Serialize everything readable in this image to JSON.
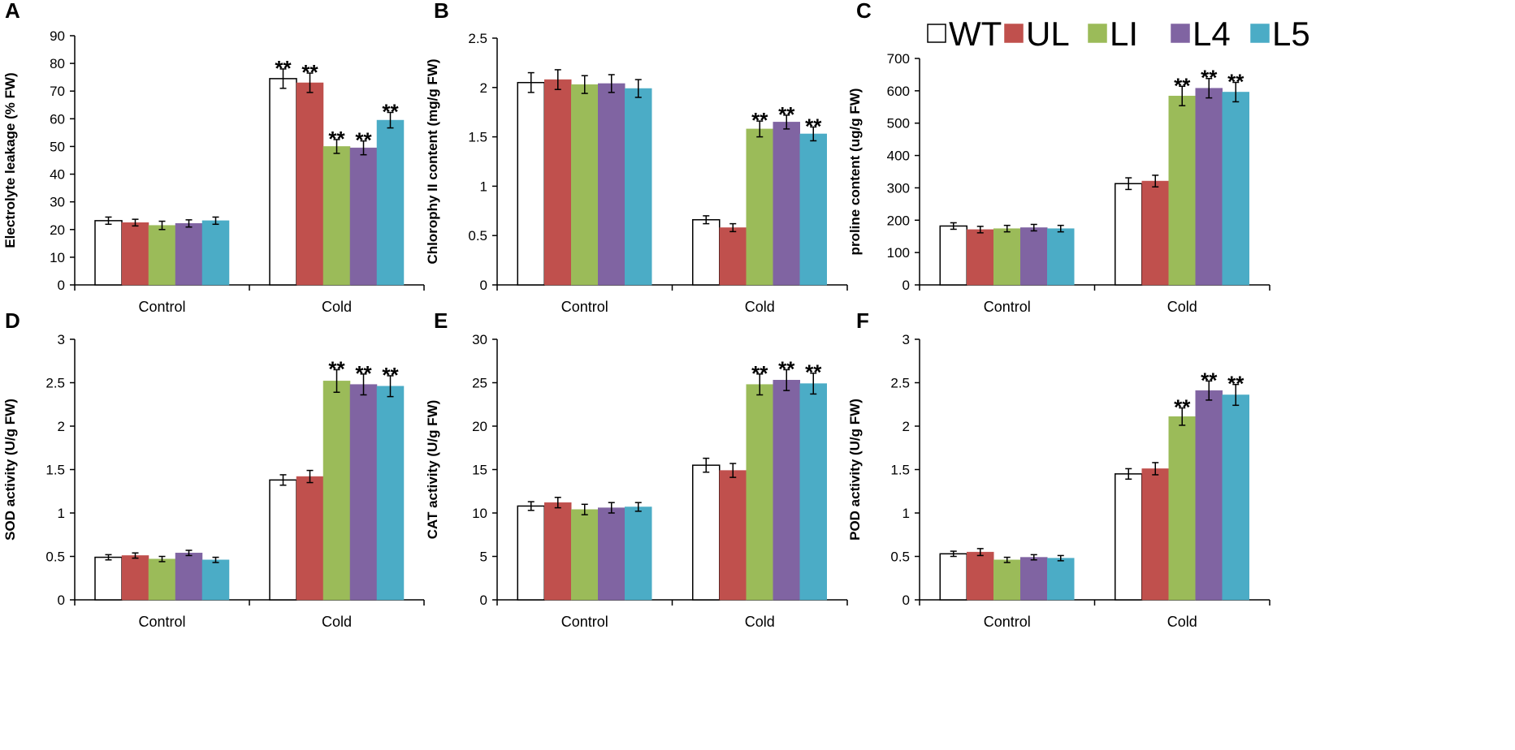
{
  "legend": [
    {
      "label": "WT",
      "color": "#ffffff"
    },
    {
      "label": "UL",
      "color": "#c0504d"
    },
    {
      "label": "LI",
      "color": "#9bbb59"
    },
    {
      "label": "L4",
      "color": "#8064a2"
    },
    {
      "label": "L5",
      "color": "#4bacc6"
    }
  ],
  "chart_data": [
    {
      "panel": "A",
      "type": "bar",
      "ylabel": "Electrolyte leakage (% FW)",
      "ylim": [
        0,
        90
      ],
      "yticks": [
        0,
        10,
        20,
        30,
        40,
        50,
        60,
        70,
        80,
        90
      ],
      "ytick_labels": [
        "0",
        "10",
        "20",
        "30",
        "40",
        "50",
        "60",
        "70",
        "80",
        "90"
      ],
      "categories": [
        "Control",
        "Cold"
      ],
      "series": [
        {
          "name": "WT",
          "values": [
            23.2,
            74.5
          ],
          "errors": [
            1.3,
            3.5
          ],
          "sig": [
            "",
            "**"
          ]
        },
        {
          "name": "UL",
          "values": [
            22.5,
            73.0
          ],
          "errors": [
            1.2,
            3.5
          ],
          "sig": [
            "",
            "**"
          ]
        },
        {
          "name": "LI",
          "values": [
            21.5,
            50.0
          ],
          "errors": [
            1.5,
            2.5
          ],
          "sig": [
            "",
            "**"
          ]
        },
        {
          "name": "L4",
          "values": [
            22.2,
            49.5
          ],
          "errors": [
            1.3,
            2.5
          ],
          "sig": [
            "",
            "**"
          ]
        },
        {
          "name": "L5",
          "values": [
            23.2,
            59.5
          ],
          "errors": [
            1.3,
            2.8
          ],
          "sig": [
            "",
            "**"
          ]
        }
      ]
    },
    {
      "panel": "B",
      "type": "bar",
      "ylabel": "Chlorophy II content  (mg/g FW)",
      "ylim": [
        0,
        2.5
      ],
      "yticks": [
        0,
        0.5,
        1,
        1.5,
        2,
        2.5
      ],
      "ytick_labels": [
        "0",
        "0.5",
        "1",
        "1.5",
        "2",
        "2.5"
      ],
      "categories": [
        "Control",
        "Cold"
      ],
      "series": [
        {
          "name": "WT",
          "values": [
            2.05,
            0.66
          ],
          "errors": [
            0.1,
            0.04
          ],
          "sig": [
            "",
            ""
          ]
        },
        {
          "name": "UL",
          "values": [
            2.08,
            0.58
          ],
          "errors": [
            0.1,
            0.04
          ],
          "sig": [
            "",
            ""
          ]
        },
        {
          "name": "LI",
          "values": [
            2.03,
            1.58
          ],
          "errors": [
            0.09,
            0.08
          ],
          "sig": [
            "",
            "**"
          ]
        },
        {
          "name": "L4",
          "values": [
            2.04,
            1.65
          ],
          "errors": [
            0.09,
            0.07
          ],
          "sig": [
            "",
            "**"
          ]
        },
        {
          "name": "L5",
          "values": [
            1.99,
            1.53
          ],
          "errors": [
            0.09,
            0.07
          ],
          "sig": [
            "",
            "**"
          ]
        }
      ]
    },
    {
      "panel": "C",
      "type": "bar",
      "ylabel": "proline content  (ug/g FW)",
      "ylim": [
        0,
        700
      ],
      "yticks": [
        0,
        100,
        200,
        300,
        400,
        500,
        600,
        700
      ],
      "ytick_labels": [
        "0",
        "100",
        "200",
        "300",
        "400",
        "500",
        "600",
        "700"
      ],
      "categories": [
        "Control",
        "Cold"
      ],
      "series": [
        {
          "name": "WT",
          "values": [
            182,
            313
          ],
          "errors": [
            10,
            18
          ],
          "sig": [
            "",
            ""
          ]
        },
        {
          "name": "UL",
          "values": [
            171,
            321
          ],
          "errors": [
            10,
            18
          ],
          "sig": [
            "",
            ""
          ]
        },
        {
          "name": "LI",
          "values": [
            174,
            584
          ],
          "errors": [
            10,
            30
          ],
          "sig": [
            "",
            "**"
          ]
        },
        {
          "name": "L4",
          "values": [
            177,
            608
          ],
          "errors": [
            10,
            30
          ],
          "sig": [
            "",
            "**"
          ]
        },
        {
          "name": "L5",
          "values": [
            174,
            596
          ],
          "errors": [
            10,
            30
          ],
          "sig": [
            "",
            "**"
          ]
        }
      ]
    },
    {
      "panel": "D",
      "type": "bar",
      "ylabel": "SOD activity  (U/g FW)",
      "ylim": [
        0,
        3
      ],
      "yticks": [
        0,
        0.5,
        1,
        1.5,
        2,
        2.5,
        3
      ],
      "ytick_labels": [
        "0",
        "0.5",
        "1",
        "1.5",
        "2",
        "2.5",
        "3"
      ],
      "categories": [
        "Control",
        "Cold"
      ],
      "series": [
        {
          "name": "WT",
          "values": [
            0.49,
            1.38
          ],
          "errors": [
            0.03,
            0.06
          ],
          "sig": [
            "",
            ""
          ]
        },
        {
          "name": "UL",
          "values": [
            0.51,
            1.42
          ],
          "errors": [
            0.03,
            0.07
          ],
          "sig": [
            "",
            ""
          ]
        },
        {
          "name": "LI",
          "values": [
            0.47,
            2.52
          ],
          "errors": [
            0.03,
            0.13
          ],
          "sig": [
            "",
            "**"
          ]
        },
        {
          "name": "L4",
          "values": [
            0.54,
            2.48
          ],
          "errors": [
            0.03,
            0.12
          ],
          "sig": [
            "",
            "**"
          ]
        },
        {
          "name": "L5",
          "values": [
            0.46,
            2.46
          ],
          "errors": [
            0.03,
            0.12
          ],
          "sig": [
            "",
            "**"
          ]
        }
      ]
    },
    {
      "panel": "E",
      "type": "bar",
      "ylabel": "CAT activity  (U/g FW)",
      "ylim": [
        0,
        30
      ],
      "yticks": [
        0,
        5,
        10,
        15,
        20,
        25,
        30
      ],
      "ytick_labels": [
        "0",
        "5",
        "10",
        "15",
        "20",
        "25",
        "30"
      ],
      "categories": [
        "Control",
        "Cold"
      ],
      "series": [
        {
          "name": "WT",
          "values": [
            10.8,
            15.5
          ],
          "errors": [
            0.5,
            0.8
          ],
          "sig": [
            "",
            ""
          ]
        },
        {
          "name": "UL",
          "values": [
            11.2,
            14.9
          ],
          "errors": [
            0.6,
            0.8
          ],
          "sig": [
            "",
            ""
          ]
        },
        {
          "name": "LI",
          "values": [
            10.4,
            24.8
          ],
          "errors": [
            0.6,
            1.2
          ],
          "sig": [
            "",
            "**"
          ]
        },
        {
          "name": "L4",
          "values": [
            10.6,
            25.3
          ],
          "errors": [
            0.6,
            1.2
          ],
          "sig": [
            "",
            "**"
          ]
        },
        {
          "name": "L5",
          "values": [
            10.7,
            24.9
          ],
          "errors": [
            0.5,
            1.2
          ],
          "sig": [
            "",
            "**"
          ]
        }
      ]
    },
    {
      "panel": "F",
      "type": "bar",
      "ylabel": "POD activity  (U/g FW)",
      "ylim": [
        0,
        3
      ],
      "yticks": [
        0,
        0.5,
        1,
        1.5,
        2,
        2.5,
        3
      ],
      "ytick_labels": [
        "0",
        "0.5",
        "1",
        "1.5",
        "2",
        "2.5",
        "3"
      ],
      "categories": [
        "Control",
        "Cold"
      ],
      "series": [
        {
          "name": "WT",
          "values": [
            0.53,
            1.45
          ],
          "errors": [
            0.03,
            0.06
          ],
          "sig": [
            "",
            ""
          ]
        },
        {
          "name": "UL",
          "values": [
            0.55,
            1.51
          ],
          "errors": [
            0.04,
            0.07
          ],
          "sig": [
            "",
            ""
          ]
        },
        {
          "name": "LI",
          "values": [
            0.46,
            2.11
          ],
          "errors": [
            0.03,
            0.1
          ],
          "sig": [
            "",
            "**"
          ]
        },
        {
          "name": "L4",
          "values": [
            0.49,
            2.41
          ],
          "errors": [
            0.03,
            0.11
          ],
          "sig": [
            "",
            "**"
          ]
        },
        {
          "name": "L5",
          "values": [
            0.48,
            2.36
          ],
          "errors": [
            0.03,
            0.12
          ],
          "sig": [
            "",
            "**"
          ]
        }
      ]
    }
  ]
}
